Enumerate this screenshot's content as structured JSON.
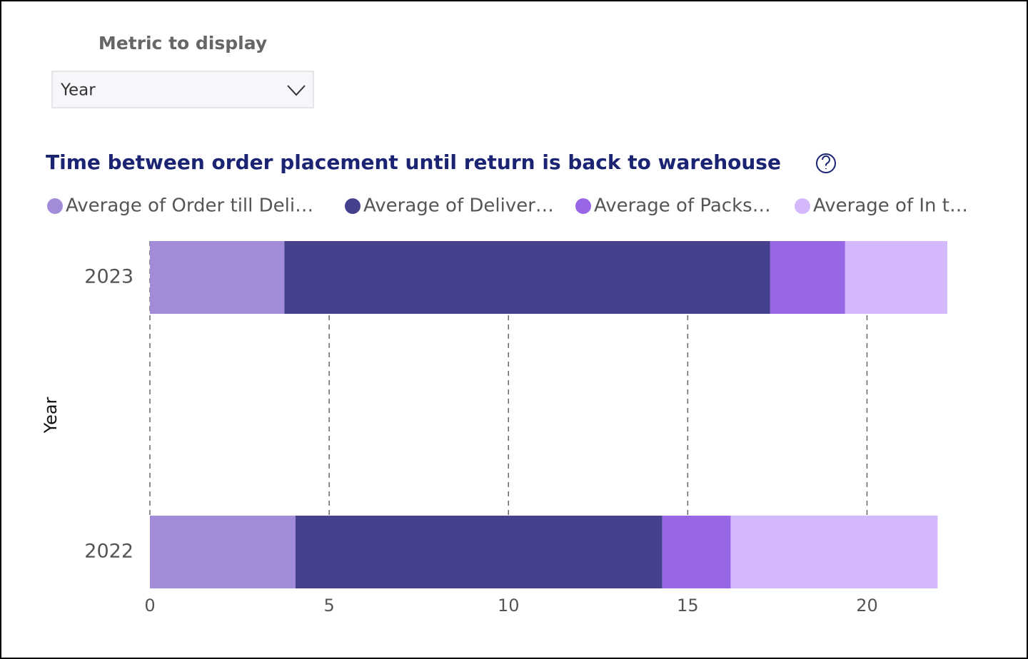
{
  "control": {
    "label": "Metric to display",
    "selected": "Year"
  },
  "chart_data": {
    "type": "stacked-bar-horizontal",
    "title": "Time between order placement until return is back to warehouse",
    "y_label": "Year",
    "categories": [
      "2023",
      "2022"
    ],
    "series": [
      {
        "name": "Average of Order till Deli…",
        "color": "#a28bd9",
        "values": [
          3.75,
          4.06
        ]
      },
      {
        "name": "Average of Deliver…",
        "color": "#45418f",
        "values": [
          13.55,
          10.23
        ]
      },
      {
        "name": "Average of Packs…",
        "color": "#9867e5",
        "values": [
          2.09,
          1.91
        ]
      },
      {
        "name": "Average of In t…",
        "color": "#d3b9fc",
        "values": [
          2.85,
          5.77
        ]
      }
    ],
    "xlim": [
      0,
      22.3
    ],
    "xticks": [
      0,
      5,
      10,
      15,
      20
    ],
    "grid": true
  }
}
